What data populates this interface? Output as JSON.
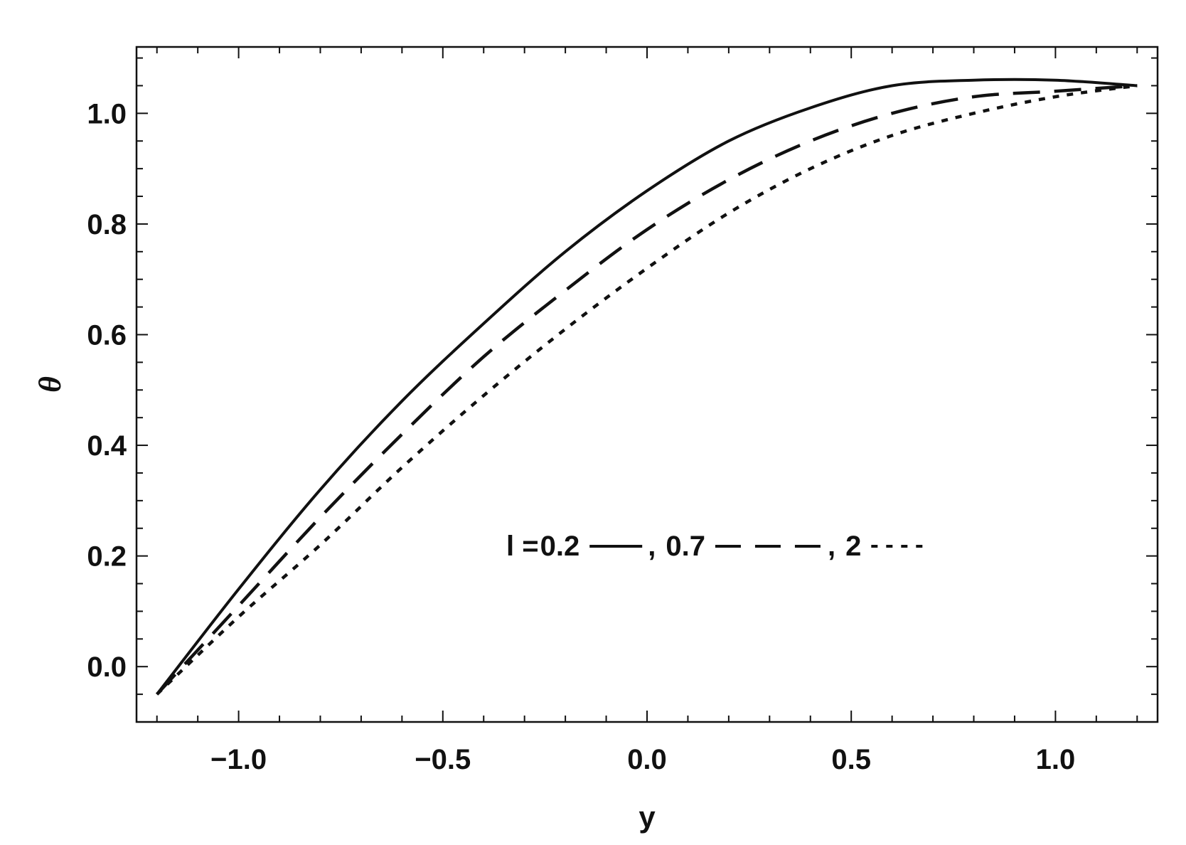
{
  "chart_data": {
    "type": "line",
    "title": "",
    "xlabel": "y",
    "ylabel": "θ",
    "xlim": [
      -1.25,
      1.25
    ],
    "ylim": [
      -0.1,
      1.12
    ],
    "xticks": [
      -1.0,
      -0.5,
      0.0,
      0.5,
      1.0
    ],
    "xtick_labels": [
      "−1.0",
      "−0.5",
      "0.0",
      "0.5",
      "1.0"
    ],
    "yticks": [
      0.0,
      0.2,
      0.4,
      0.6,
      0.8,
      1.0
    ],
    "ytick_labels": [
      "0.0",
      "0.2",
      "0.4",
      "0.6",
      "0.8",
      "1.0"
    ],
    "grid": false,
    "frame_ticks_mirrored": true,
    "legend": {
      "placement": "inside-lower-right",
      "prefix": "l = ",
      "separator": ",",
      "items": [
        {
          "label": "0.2",
          "style": "solid"
        },
        {
          "label": "0.7",
          "style": "dashed"
        },
        {
          "label": "2",
          "style": "dotted"
        }
      ]
    },
    "series": [
      {
        "legend_label": "0.2",
        "style": "solid",
        "x": [
          -1.2,
          -1.0,
          -0.8,
          -0.6,
          -0.4,
          -0.2,
          0.0,
          0.2,
          0.4,
          0.6,
          0.8,
          1.0,
          1.2
        ],
        "y": [
          -0.05,
          0.14,
          0.32,
          0.48,
          0.62,
          0.75,
          0.86,
          0.95,
          1.01,
          1.05,
          1.06,
          1.06,
          1.05
        ]
      },
      {
        "legend_label": "0.7",
        "style": "dashed",
        "x": [
          -1.2,
          -1.0,
          -0.8,
          -0.6,
          -0.4,
          -0.2,
          0.0,
          0.2,
          0.4,
          0.6,
          0.8,
          1.0,
          1.2
        ],
        "y": [
          -0.05,
          0.11,
          0.27,
          0.42,
          0.56,
          0.68,
          0.79,
          0.88,
          0.95,
          1.0,
          1.03,
          1.04,
          1.05
        ]
      },
      {
        "legend_label": "2",
        "style": "dotted",
        "x": [
          -1.2,
          -1.0,
          -0.8,
          -0.6,
          -0.4,
          -0.2,
          0.0,
          0.2,
          0.4,
          0.6,
          0.8,
          1.0,
          1.2
        ],
        "y": [
          -0.05,
          0.09,
          0.22,
          0.36,
          0.49,
          0.61,
          0.72,
          0.82,
          0.9,
          0.96,
          1.0,
          1.03,
          1.05
        ]
      }
    ]
  },
  "colors": {
    "line": "#111111",
    "frame": "#111111",
    "background": "#ffffff"
  }
}
